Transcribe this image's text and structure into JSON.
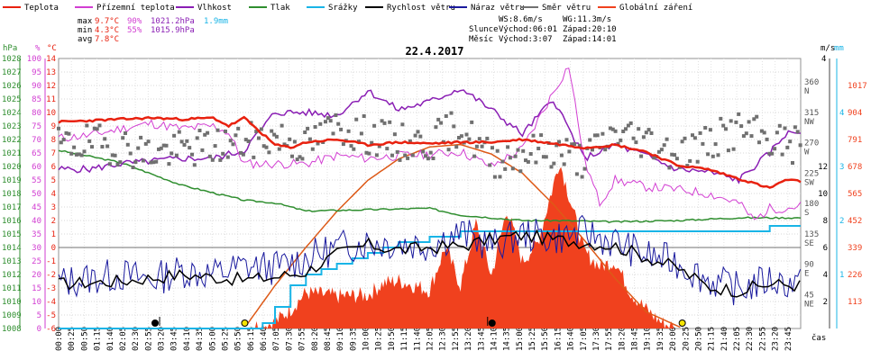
{
  "chart_data": {
    "type": "line",
    "title": "22.4.2017",
    "xlabel": "čas",
    "legend": [
      {
        "name": "Teplota",
        "color": "#e8210f"
      },
      {
        "name": "Přízemní teplota",
        "color": "#d23ed2"
      },
      {
        "name": "Vlhkost",
        "color": "#8a1eb4"
      },
      {
        "name": "Tlak",
        "color": "#2f8e2f"
      },
      {
        "name": "Srážky",
        "color": "#19b4e6"
      },
      {
        "name": "Rychlost větru",
        "color": "#000000"
      },
      {
        "name": "Náraz větru",
        "color": "#1a1a9e"
      },
      {
        "name": "Směr větru",
        "color": "#707070"
      },
      {
        "name": "Globální záření",
        "color": "#f0411e"
      }
    ],
    "stats": [
      {
        "label": "max",
        "temp": "9.7°C",
        "hum": "90%",
        "press": "1021.2hPa",
        "rain": "1.9mm"
      },
      {
        "label": "min",
        "temp": "4.3°C",
        "hum": "55%",
        "press": "1015.9hPa",
        "rain": ""
      },
      {
        "label": "avg",
        "temp": "7.8°C",
        "hum": "",
        "press": "",
        "rain": ""
      }
    ],
    "info": {
      "ws": "WS:8.6m/s",
      "wg": "WG:11.3m/s",
      "sun_label": "Slunce",
      "sun_rise": "Východ:06:01",
      "sun_set": "Západ:20:10",
      "moon_label": "Měsíc",
      "moon_rise": "Východ:3:07",
      "moon_set": "Západ:14:01"
    },
    "axes": {
      "hpa": {
        "title": "hPa",
        "ticks": [
          1008,
          1009,
          1010,
          1011,
          1012,
          1013,
          1014,
          1015,
          1016,
          1017,
          1018,
          1019,
          1020,
          1021,
          1022,
          1023,
          1024,
          1025,
          1026,
          1027,
          1028
        ],
        "color": "#2f8e2f"
      },
      "pct": {
        "title": "%",
        "ticks": [
          0,
          5,
          10,
          15,
          20,
          25,
          30,
          35,
          40,
          45,
          50,
          55,
          60,
          65,
          70,
          75,
          80,
          85,
          90,
          95,
          100
        ],
        "color": "#d23ed2"
      },
      "temp": {
        "title": "°C",
        "ticks": [
          -6,
          -5,
          -4,
          -3,
          -2,
          -1,
          0,
          1,
          2,
          3,
          4,
          5,
          6,
          7,
          8,
          9,
          10,
          11,
          12,
          13,
          14
        ],
        "color": "#e8210f"
      },
      "dir": {
        "ticks": [
          "45 NE",
          "90 E",
          "135 SE",
          "180 S",
          "225 SW",
          "270 W",
          "315 NW",
          "360 N"
        ]
      },
      "ms": {
        "title": "m/s",
        "ticks": [
          2,
          4,
          6,
          8,
          10,
          12
        ],
        "top_label": "4"
      },
      "mm": {
        "title": "mm",
        "ticks": [
          1,
          2,
          3,
          4
        ]
      },
      "wm2": {
        "ticks": [
          113,
          226,
          339,
          452,
          565,
          678,
          791,
          904,
          1017
        ]
      },
      "x_ticks": [
        "00:00",
        "00:25",
        "00:50",
        "01:15",
        "01:40",
        "02:05",
        "02:30",
        "02:55",
        "03:20",
        "03:45",
        "04:10",
        "04:35",
        "05:00",
        "05:25",
        "05:50",
        "06:15",
        "06:40",
        "07:05",
        "07:30",
        "07:55",
        "08:20",
        "08:45",
        "09:10",
        "09:35",
        "10:00",
        "10:25",
        "10:50",
        "11:15",
        "11:40",
        "12:05",
        "12:30",
        "12:55",
        "13:20",
        "13:45",
        "14:10",
        "14:35",
        "15:00",
        "15:25",
        "15:50",
        "16:15",
        "16:40",
        "17:05",
        "17:30",
        "17:55",
        "18:20",
        "18:45",
        "19:10",
        "19:35",
        "20:00",
        "20:25",
        "20:50",
        "21:15",
        "21:40",
        "22:05",
        "22:30",
        "22:55",
        "23:20",
        "23:45"
      ]
    },
    "series": {
      "temperature": {
        "x": [
          0,
          1,
          2,
          3,
          4,
          5,
          5.5,
          6,
          7,
          7.5,
          8,
          9,
          10,
          11,
          12,
          13,
          14,
          15,
          16,
          17,
          18,
          19,
          20,
          21,
          22,
          23,
          23.5,
          24
        ],
        "y": [
          9.3,
          9.4,
          9.5,
          9.6,
          9.5,
          9.6,
          9.0,
          9.6,
          7.6,
          7.4,
          7.8,
          8.0,
          7.6,
          7.8,
          7.7,
          7.8,
          7.8,
          8.0,
          7.7,
          7.4,
          7.6,
          7.1,
          6.1,
          5.8,
          5.1,
          4.4,
          5.0,
          4.9
        ]
      },
      "ground_temperature": {
        "x": [
          0,
          1,
          2,
          3,
          4,
          5,
          5.5,
          6,
          7,
          8,
          9,
          10,
          11,
          12,
          13,
          14,
          15,
          16,
          16.5,
          17,
          17.5,
          18,
          19,
          20,
          21,
          22,
          22.5,
          23,
          23.5,
          24
        ],
        "y": [
          8.1,
          8.3,
          8.8,
          9.2,
          8.8,
          9.0,
          8.5,
          6.2,
          6.2,
          6.2,
          6.8,
          6.6,
          6.8,
          6.9,
          7.1,
          6.0,
          7.3,
          11.5,
          13.5,
          6.5,
          3.3,
          5.0,
          4.5,
          4.3,
          4.0,
          3.3,
          2.0,
          2.9,
          2.9,
          3.1
        ]
      },
      "humidity": {
        "x": [
          0,
          1,
          2,
          3,
          4,
          5,
          6,
          7,
          8,
          9,
          10,
          11,
          12,
          13,
          14,
          15,
          16,
          17,
          18,
          19,
          20,
          21,
          22,
          23,
          23.5,
          24
        ],
        "y": [
          59,
          59,
          61,
          62,
          63,
          63,
          66,
          80,
          80,
          79,
          88,
          81,
          84,
          89,
          81,
          72,
          85,
          63,
          68,
          64,
          59,
          58,
          55,
          65,
          72,
          73
        ]
      },
      "pressure": {
        "x": [
          0,
          2,
          4,
          6,
          7,
          8,
          10,
          12,
          13,
          15,
          16,
          18,
          20,
          22,
          23,
          24
        ],
        "y": [
          1021.2,
          1020.3,
          1018.6,
          1017.5,
          1017.3,
          1016.7,
          1016.8,
          1016.9,
          1016.4,
          1016.0,
          1016.0,
          1015.9,
          1016.0,
          1016.2,
          1016.2,
          1016.2
        ]
      },
      "rain": {
        "x": [
          0,
          6,
          6.6,
          7,
          7.5,
          8,
          8.5,
          9,
          9.5,
          10,
          10.5,
          11,
          12,
          13,
          14,
          16,
          18,
          20,
          22,
          23,
          24
        ],
        "y": [
          0,
          0,
          0.1,
          0.4,
          0.8,
          1.0,
          1.1,
          1.2,
          1.3,
          1.4,
          1.5,
          1.6,
          1.7,
          1.8,
          1.8,
          1.8,
          1.8,
          1.8,
          1.8,
          1.9,
          1.9
        ]
      },
      "wind_speed": {
        "x": [
          0,
          2,
          4,
          6,
          7,
          8,
          9,
          10,
          11,
          12,
          13,
          14,
          15,
          16,
          17,
          18,
          19,
          20,
          21,
          22,
          23,
          24
        ],
        "y": [
          3.3,
          3.5,
          4.0,
          3.6,
          3.8,
          4.2,
          5.5,
          6.2,
          5.8,
          6.0,
          6.1,
          6.6,
          6.9,
          6.6,
          6.4,
          6.1,
          5.3,
          4.5,
          3.1,
          2.8,
          3.3,
          3.2
        ]
      },
      "wind_gust": {
        "x": [
          0,
          1,
          2,
          3,
          4,
          5,
          6,
          7,
          8,
          9,
          10,
          11,
          12,
          13,
          14,
          15,
          16,
          17,
          18,
          19,
          20,
          21,
          22,
          23,
          24
        ],
        "y": [
          3.4,
          3.7,
          4.0,
          3.6,
          4.3,
          4.0,
          4.6,
          4.5,
          5.2,
          6.0,
          6.4,
          6.3,
          6.2,
          7.1,
          6.1,
          7.0,
          6.7,
          7.1,
          6.4,
          5.4,
          4.9,
          3.6,
          2.9,
          3.6,
          3.2
        ]
      },
      "wind_dir": {
        "x": [
          0,
          1,
          2,
          3,
          4,
          5,
          6,
          7,
          8,
          9,
          10,
          11,
          12,
          13,
          14,
          15,
          16,
          17,
          18,
          19,
          20,
          21,
          22,
          23,
          24
        ],
        "y": [
          270,
          275,
          270,
          260,
          265,
          270,
          275,
          285,
          270,
          300,
          285,
          275,
          275,
          300,
          250,
          260,
          265,
          250,
          290,
          280,
          260,
          275,
          295,
          280,
          270
        ]
      },
      "radiation": {
        "x": [
          0,
          6,
          7,
          7.5,
          8,
          9,
          10,
          10.5,
          11,
          12,
          12.5,
          13,
          13.5,
          14,
          14.5,
          15,
          15.5,
          16,
          16.2,
          16.5,
          17,
          17.5,
          18,
          18.5,
          19,
          19.5,
          20,
          24
        ],
        "y": [
          0,
          0,
          25,
          80,
          150,
          135,
          140,
          190,
          200,
          160,
          340,
          180,
          440,
          220,
          500,
          280,
          360,
          600,
          700,
          560,
          320,
          260,
          280,
          150,
          80,
          25,
          0,
          0
        ]
      },
      "clear_sky_radiation": {
        "x": [
          6.0,
          7,
          8,
          9,
          10,
          11,
          12,
          13,
          14,
          15,
          16,
          17,
          18,
          19,
          20.2
        ],
        "y": [
          0,
          180,
          340,
          490,
          620,
          710,
          760,
          770,
          730,
          650,
          520,
          370,
          210,
          70,
          0
        ]
      }
    }
  }
}
